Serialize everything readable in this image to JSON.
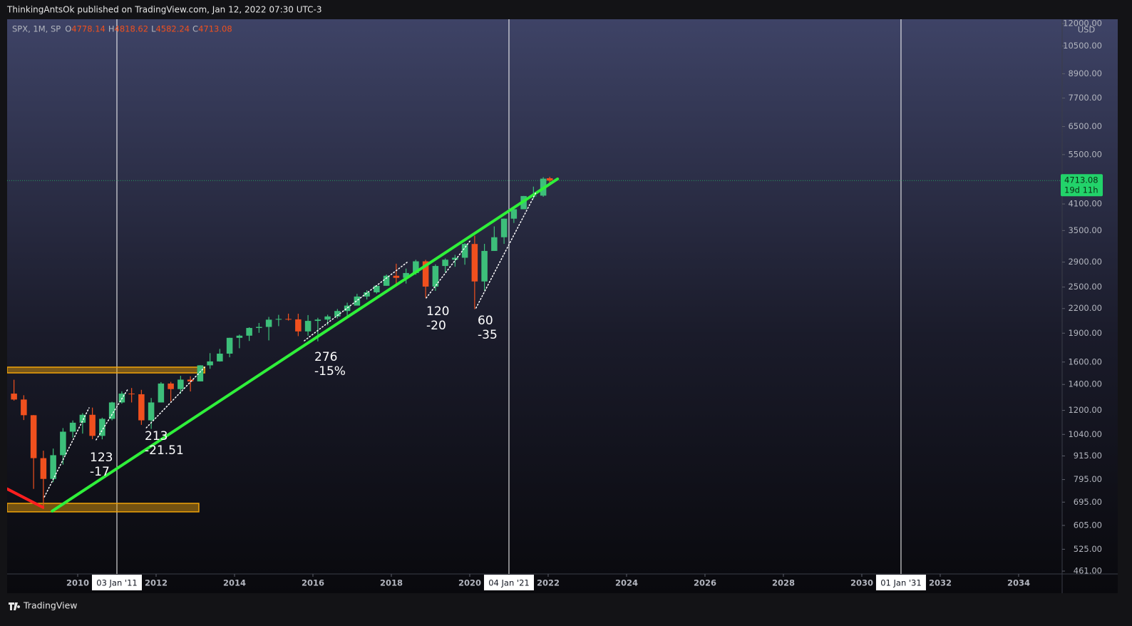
{
  "header": {
    "text": "ThinkingAntsOk published on TradingView.com, Jan 12, 2022 07:30 UTC-3"
  },
  "footer": {
    "brand": "TradingView"
  },
  "chart_data": {
    "type": "candlestick",
    "symbol": "SPX, 1M, SP",
    "ohlc": [
      {
        "label": "O",
        "value": 4778.14
      },
      {
        "label": "H",
        "value": 4818.62
      },
      {
        "label": "L",
        "value": 4582.24
      },
      {
        "label": "C",
        "value": 4713.08
      }
    ],
    "last_price": 4713.08,
    "countdown": "19d 11h",
    "y_unit": "USD",
    "log_scale": true,
    "up_color": "#3dbf7a",
    "down_color": "#f0501e",
    "xlim": [
      2008.2,
      2035.11
    ],
    "ylim": [
      461,
      12000
    ],
    "xticks": [
      2010,
      2012,
      2014,
      2016,
      2018,
      2020,
      2022,
      2024,
      2026,
      2028,
      2030,
      2032,
      2034
    ],
    "yticks": [
      {
        "value": 461,
        "label": "461.00"
      },
      {
        "value": 525,
        "label": "525.00"
      },
      {
        "value": 605,
        "label": "605.00"
      },
      {
        "value": 695,
        "label": "695.00"
      },
      {
        "value": 795,
        "label": "795.00"
      },
      {
        "value": 915,
        "label": "915.00"
      },
      {
        "value": 1040,
        "label": "1040.00"
      },
      {
        "value": 1200,
        "label": "1200.00"
      },
      {
        "value": 1400,
        "label": "1400.00"
      },
      {
        "value": 1600,
        "label": "1600.00"
      },
      {
        "value": 1900,
        "label": "1900.00"
      },
      {
        "value": 2200,
        "label": "2200.00"
      },
      {
        "value": 2500,
        "label": "2500.00"
      },
      {
        "value": 2900,
        "label": "2900.00"
      },
      {
        "value": 3500,
        "label": "3500.00"
      },
      {
        "value": 4100,
        "label": "4100.00"
      },
      {
        "value": 5500,
        "label": "5500.00"
      },
      {
        "value": 6500,
        "label": "6500.00"
      },
      {
        "value": 7700,
        "label": "7700.00"
      },
      {
        "value": 8900,
        "label": "8900.00"
      },
      {
        "value": 10500,
        "label": "10500.00"
      },
      {
        "value": 12000,
        "label": "12000.00"
      }
    ],
    "markers": [
      {
        "value": 2011,
        "label": "03 Jan '11"
      },
      {
        "value": 2021,
        "label": "04 Jan '21"
      },
      {
        "value": 2031,
        "label": "01 Jan '31"
      }
    ],
    "x": [
      2008.375,
      2008.625,
      2008.875,
      2009.125,
      2009.375,
      2009.625,
      2009.875,
      2010.125,
      2010.375,
      2010.625,
      2010.875,
      2011.125,
      2011.375,
      2011.625,
      2011.875,
      2012.125,
      2012.375,
      2012.625,
      2012.875,
      2013.125,
      2013.375,
      2013.625,
      2013.875,
      2014.125,
      2014.375,
      2014.625,
      2014.875,
      2015.125,
      2015.375,
      2015.625,
      2015.875,
      2016.125,
      2016.375,
      2016.625,
      2016.875,
      2017.125,
      2017.375,
      2017.625,
      2017.875,
      2018.125,
      2018.375,
      2018.625,
      2018.875,
      2019.125,
      2019.375,
      2019.625,
      2019.875,
      2020.125,
      2020.375,
      2020.625,
      2020.875,
      2021.125,
      2021.375,
      2021.625,
      2021.875,
      2022.04
    ],
    "open": [
      1326,
      1280,
      1166,
      903,
      798,
      919,
      1057,
      1115,
      1169,
      1031,
      1141,
      1258,
      1326,
      1321,
      1131,
      1258,
      1408,
      1362,
      1441,
      1426,
      1569,
      1606,
      1682,
      1848,
      1872,
      1960,
      1972,
      2059,
      2068,
      2063,
      1920,
      2044,
      2060,
      2099,
      2168,
      2239,
      2363,
      2423,
      2519,
      2674,
      2641,
      2718,
      2914,
      2507,
      2834,
      2942,
      2977,
      3231,
      2585,
      3100,
      3363,
      3756,
      3973,
      4298,
      4308,
      4778.14
    ],
    "high": [
      1440,
      1313,
      1167,
      944,
      956,
      1080,
      1130,
      1180,
      1220,
      1149,
      1263,
      1344,
      1371,
      1356,
      1292,
      1420,
      1422,
      1474,
      1470,
      1570,
      1687,
      1730,
      1849,
      1884,
      1968,
      2019,
      2093,
      2119,
      2134,
      2133,
      2116,
      2082,
      2121,
      2194,
      2278,
      2401,
      2454,
      2520,
      2694,
      2873,
      2791,
      2941,
      2940,
      2861,
      2964,
      3028,
      3247,
      3394,
      3233,
      3588,
      3760,
      3983,
      4300,
      4546,
      4808,
      4818.62
    ],
    "low": [
      1272,
      1133,
      752,
      667,
      783,
      869,
      1020,
      1045,
      1011,
      1010,
      1131,
      1249,
      1258,
      1101,
      1075,
      1258,
      1267,
      1325,
      1343,
      1426,
      1537,
      1604,
      1646,
      1737,
      1814,
      1904,
      1820,
      1981,
      2048,
      1867,
      1872,
      1810,
      1992,
      2075,
      2084,
      2245,
      2322,
      2406,
      2520,
      2533,
      2553,
      2691,
      2347,
      2444,
      2729,
      2822,
      2856,
      2192,
      2447,
      3101,
      3233,
      3662,
      4056,
      4224,
      4279,
      4582.24
    ],
    "close": [
      1280,
      1166,
      903,
      798,
      919,
      1057,
      1115,
      1169,
      1031,
      1141,
      1258,
      1326,
      1321,
      1131,
      1258,
      1408,
      1362,
      1441,
      1426,
      1569,
      1606,
      1682,
      1848,
      1872,
      1960,
      1972,
      2059,
      2068,
      2063,
      1920,
      2044,
      2060,
      2099,
      2168,
      2239,
      2363,
      2423,
      2519,
      2674,
      2641,
      2718,
      2914,
      2507,
      2834,
      2942,
      2977,
      3231,
      2585,
      3100,
      3363,
      3756,
      3973,
      4298,
      4308,
      4766,
      4713.08
    ],
    "zones": [
      {
        "color": "#f0a30a",
        "x": [
          2008.2,
          2013.24
        ],
        "y": [
          1500,
          1552
        ]
      },
      {
        "color": "#f0a30a",
        "x": [
          2008.2,
          2013.09
        ],
        "y": [
          656,
          690
        ]
      }
    ],
    "trendlines": [
      {
        "color": "#2ff03a",
        "style": "solid",
        "x": [
          2009.35,
          2022.24
        ],
        "y": [
          659,
          4759
        ]
      },
      {
        "color": "#ff1f1f",
        "style": "solid",
        "x": [
          2008.2,
          2009.11
        ],
        "y": [
          752,
          674
        ]
      },
      {
        "color": "#ffffff",
        "style": "dotted",
        "x": [
          2009.15,
          2010.29
        ],
        "y": [
          717,
          1218
        ]
      },
      {
        "color": "#ffffff",
        "style": "dotted",
        "x": [
          2010.47,
          2011.29
        ],
        "y": [
          1007,
          1367
        ]
      },
      {
        "color": "#ffffff",
        "style": "dotted",
        "x": [
          2011.75,
          2013.24
        ],
        "y": [
          1082,
          1552
        ]
      },
      {
        "color": "#ffffff",
        "style": "dotted",
        "x": [
          2015.78,
          2018.4
        ],
        "y": [
          1816,
          2896
        ]
      },
      {
        "color": "#ffffff",
        "style": "dotted",
        "x": [
          2018.89,
          2020.02
        ],
        "y": [
          2343,
          3303
        ]
      },
      {
        "color": "#ffffff",
        "style": "dotted",
        "x": [
          2020.16,
          2021.69
        ],
        "y": [
          2207,
          4391
        ]
      }
    ],
    "annotations": [
      [
        "123",
        "-17"
      ],
      [
        "213",
        "-21.51"
      ],
      [
        "276",
        "-15%"
      ],
      [
        "120",
        "-20"
      ],
      [
        "60",
        "-35"
      ]
    ]
  }
}
